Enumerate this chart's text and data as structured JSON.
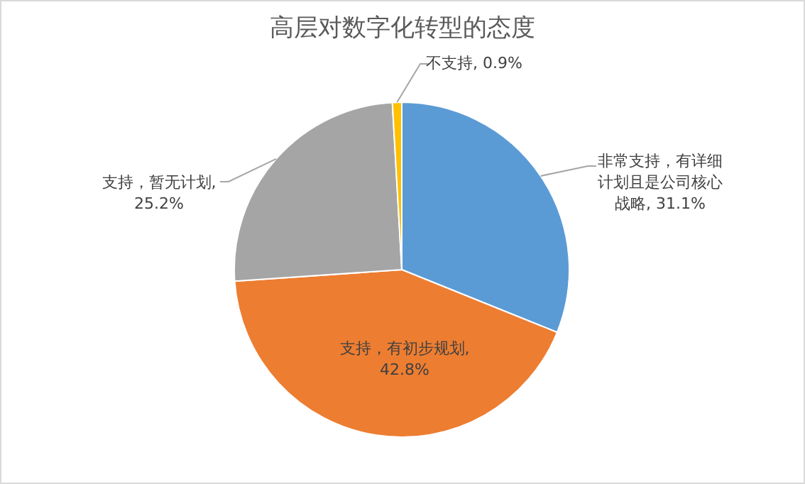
{
  "chart_data": {
    "type": "pie",
    "title": "高层对数字化转型的态度",
    "categories": [
      null,
      null,
      null,
      null
    ],
    "values": [
      31.1,
      42.8,
      25.2,
      0.9
    ],
    "colors": [
      "#5b9bd5",
      "#ed7d31",
      "#a5a5a5",
      "#ffc000"
    ],
    "value_labels": [
      "非常支持，有详细计划且是公司核心战略, 31.1%",
      "支持，有初步规划, 42.8%",
      "支持，暂无计划, 25.2%",
      "不支持, 0.9%"
    ]
  }
}
